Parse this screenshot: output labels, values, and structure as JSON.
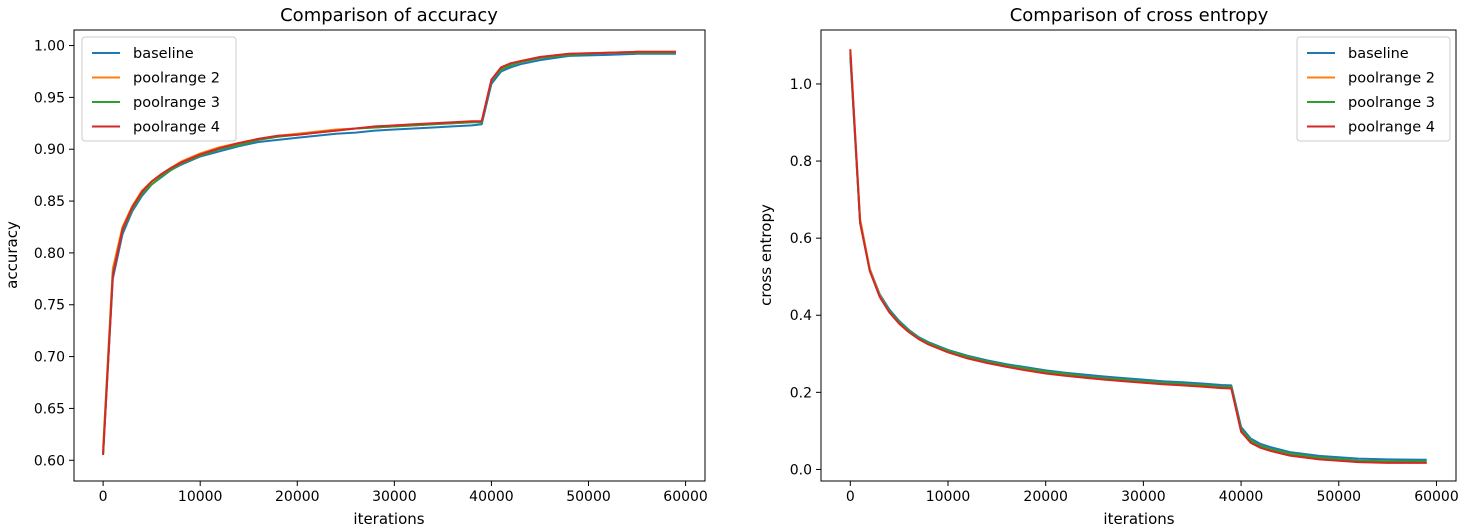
{
  "colors": {
    "baseline": "#1f77b4",
    "poolrange 2": "#ff7f0e",
    "poolrange 3": "#2ca02c",
    "poolrange 4": "#d62728"
  },
  "chart_data": [
    {
      "type": "line",
      "title": "Comparison of accuracy",
      "xlabel": "iterations",
      "ylabel": "accuracy",
      "xlim": [
        -3000,
        62000
      ],
      "ylim": [
        0.58,
        1.015
      ],
      "xticks": [
        0,
        10000,
        20000,
        30000,
        40000,
        50000,
        60000
      ],
      "xtick_labels": [
        "0",
        "10000",
        "20000",
        "30000",
        "40000",
        "50000",
        "60000"
      ],
      "yticks": [
        0.6,
        0.65,
        0.7,
        0.75,
        0.8,
        0.85,
        0.9,
        0.95,
        1.0
      ],
      "ytick_labels": [
        "0.60",
        "0.65",
        "0.70",
        "0.75",
        "0.80",
        "0.85",
        "0.90",
        "0.95",
        "1.00"
      ],
      "grid": false,
      "legend_position": "upper-left",
      "x": [
        0,
        1000,
        2000,
        3000,
        4000,
        5000,
        6000,
        7000,
        8000,
        10000,
        12000,
        14000,
        16000,
        18000,
        20000,
        22000,
        24000,
        26000,
        28000,
        30000,
        32000,
        34000,
        36000,
        38000,
        39000,
        40000,
        41000,
        42000,
        43000,
        45000,
        48000,
        52000,
        55000,
        59000
      ],
      "series": [
        {
          "name": "baseline",
          "values": [
            0.606,
            0.775,
            0.818,
            0.84,
            0.855,
            0.866,
            0.873,
            0.88,
            0.885,
            0.893,
            0.898,
            0.903,
            0.907,
            0.909,
            0.911,
            0.913,
            0.915,
            0.916,
            0.918,
            0.919,
            0.92,
            0.921,
            0.922,
            0.923,
            0.924,
            0.963,
            0.975,
            0.979,
            0.982,
            0.986,
            0.99,
            0.991,
            0.992,
            0.992
          ]
        },
        {
          "name": "poolrange 2",
          "values": [
            0.612,
            0.785,
            0.825,
            0.845,
            0.86,
            0.869,
            0.876,
            0.882,
            0.888,
            0.896,
            0.902,
            0.906,
            0.91,
            0.913,
            0.915,
            0.917,
            0.919,
            0.92,
            0.921,
            0.922,
            0.923,
            0.924,
            0.925,
            0.926,
            0.927,
            0.967,
            0.978,
            0.982,
            0.985,
            0.989,
            0.992,
            0.993,
            0.994,
            0.994
          ]
        },
        {
          "name": "poolrange 3",
          "values": [
            0.607,
            0.78,
            0.822,
            0.842,
            0.857,
            0.866,
            0.874,
            0.88,
            0.886,
            0.894,
            0.9,
            0.904,
            0.909,
            0.912,
            0.914,
            0.916,
            0.918,
            0.92,
            0.921,
            0.922,
            0.923,
            0.924,
            0.925,
            0.926,
            0.926,
            0.966,
            0.977,
            0.981,
            0.984,
            0.988,
            0.991,
            0.993,
            0.993,
            0.993
          ]
        },
        {
          "name": "poolrange 4",
          "values": [
            0.605,
            0.778,
            0.823,
            0.844,
            0.859,
            0.869,
            0.876,
            0.882,
            0.887,
            0.895,
            0.901,
            0.906,
            0.91,
            0.913,
            0.914,
            0.916,
            0.918,
            0.92,
            0.922,
            0.923,
            0.924,
            0.925,
            0.926,
            0.927,
            0.927,
            0.967,
            0.979,
            0.983,
            0.985,
            0.989,
            0.992,
            0.993,
            0.994,
            0.994
          ]
        }
      ]
    },
    {
      "type": "line",
      "title": "Comparison of cross entropy",
      "xlabel": "iterations",
      "ylabel": "cross entropy",
      "xlim": [
        -3000,
        62000
      ],
      "ylim": [
        -0.03,
        1.14
      ],
      "xticks": [
        0,
        10000,
        20000,
        30000,
        40000,
        50000,
        60000
      ],
      "xtick_labels": [
        "0",
        "10000",
        "20000",
        "30000",
        "40000",
        "50000",
        "60000"
      ],
      "yticks": [
        0.0,
        0.2,
        0.4,
        0.6,
        0.8,
        1.0
      ],
      "ytick_labels": [
        "0.0",
        "0.2",
        "0.4",
        "0.6",
        "0.8",
        "1.0"
      ],
      "grid": false,
      "legend_position": "upper-right",
      "x": [
        0,
        1000,
        2000,
        3000,
        4000,
        5000,
        6000,
        7000,
        8000,
        10000,
        12000,
        14000,
        16000,
        18000,
        20000,
        22000,
        24000,
        26000,
        28000,
        30000,
        32000,
        34000,
        36000,
        38000,
        39000,
        40000,
        41000,
        42000,
        43000,
        45000,
        48000,
        52000,
        55000,
        59000
      ],
      "series": [
        {
          "name": "baseline",
          "values": [
            1.07,
            0.64,
            0.52,
            0.455,
            0.415,
            0.385,
            0.362,
            0.343,
            0.33,
            0.31,
            0.295,
            0.283,
            0.273,
            0.265,
            0.257,
            0.251,
            0.246,
            0.241,
            0.237,
            0.233,
            0.229,
            0.226,
            0.223,
            0.219,
            0.218,
            0.11,
            0.08,
            0.066,
            0.058,
            0.045,
            0.035,
            0.028,
            0.026,
            0.025
          ]
        },
        {
          "name": "poolrange 2",
          "values": [
            1.09,
            0.65,
            0.52,
            0.452,
            0.41,
            0.38,
            0.358,
            0.34,
            0.326,
            0.306,
            0.29,
            0.278,
            0.268,
            0.259,
            0.251,
            0.245,
            0.24,
            0.235,
            0.231,
            0.227,
            0.223,
            0.22,
            0.217,
            0.213,
            0.212,
            0.1,
            0.071,
            0.058,
            0.05,
            0.038,
            0.028,
            0.021,
            0.019,
            0.019
          ]
        },
        {
          "name": "poolrange 3",
          "values": [
            1.08,
            0.64,
            0.515,
            0.45,
            0.41,
            0.382,
            0.36,
            0.341,
            0.328,
            0.308,
            0.293,
            0.28,
            0.27,
            0.262,
            0.254,
            0.248,
            0.242,
            0.237,
            0.233,
            0.229,
            0.225,
            0.222,
            0.219,
            0.215,
            0.214,
            0.104,
            0.075,
            0.061,
            0.053,
            0.041,
            0.031,
            0.023,
            0.021,
            0.021
          ]
        },
        {
          "name": "poolrange 4",
          "values": [
            1.09,
            0.64,
            0.515,
            0.448,
            0.407,
            0.378,
            0.356,
            0.338,
            0.324,
            0.304,
            0.288,
            0.276,
            0.266,
            0.257,
            0.249,
            0.243,
            0.238,
            0.233,
            0.229,
            0.225,
            0.221,
            0.218,
            0.215,
            0.211,
            0.21,
            0.098,
            0.069,
            0.056,
            0.048,
            0.036,
            0.026,
            0.019,
            0.017,
            0.017
          ]
        }
      ]
    }
  ]
}
